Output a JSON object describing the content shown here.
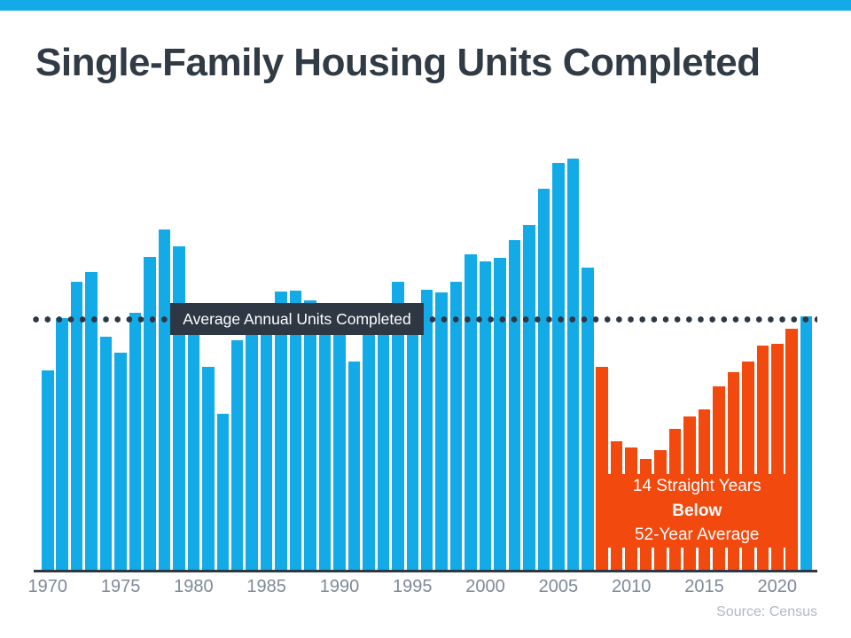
{
  "header": {
    "title": "Single-Family Housing Units Completed"
  },
  "annotation_box": {
    "average_label": "Average Annual Units Completed"
  },
  "below_average_annotation": {
    "line1": "14 Straight Years",
    "line2": "Below",
    "line3": "52-Year Average"
  },
  "footer": {
    "source": "Source: Census"
  },
  "colors": {
    "accent_blue": "#12abe8",
    "bar_blue": "#12abe8",
    "bar_orange": "#f1490e",
    "dark_slate": "#2d3844",
    "title_text": "#313b46",
    "axis_label": "#7d8a99",
    "source_text": "#afb9c4",
    "white": "#ffffff"
  },
  "chart_data": {
    "type": "bar",
    "title": "Single-Family Housing Units Completed",
    "xlabel": "",
    "ylabel": "",
    "unit": "thousands of single-family housing units completed per year (estimated from bar heights)",
    "x": [
      1970,
      1971,
      1972,
      1973,
      1974,
      1975,
      1976,
      1977,
      1978,
      1979,
      1980,
      1981,
      1982,
      1983,
      1984,
      1985,
      1986,
      1987,
      1988,
      1989,
      1990,
      1991,
      1992,
      1993,
      1994,
      1995,
      1996,
      1997,
      1998,
      1999,
      2000,
      2001,
      2002,
      2003,
      2004,
      2005,
      2006,
      2007,
      2008,
      2009,
      2010,
      2011,
      2012,
      2013,
      2014,
      2015,
      2016,
      2017,
      2018,
      2019,
      2020,
      2021,
      2022
    ],
    "values": [
      802,
      1014,
      1160,
      1197,
      940,
      875,
      1034,
      1258,
      1369,
      1301,
      957,
      819,
      631,
      924,
      1025,
      1072,
      1120,
      1123,
      1085,
      1026,
      966,
      838,
      964,
      1039,
      1160,
      1066,
      1129,
      1116,
      1160,
      1270,
      1242,
      1256,
      1325,
      1386,
      1532,
      1636,
      1654,
      1218,
      819,
      520,
      496,
      447,
      483,
      569,
      620,
      648,
      738,
      795,
      840,
      903,
      912,
      971,
      1019
    ],
    "x_tick_labels": [
      "1970",
      "1975",
      "1980",
      "1985",
      "1990",
      "1995",
      "2000",
      "2005",
      "2010",
      "2015",
      "2020"
    ],
    "average_line": {
      "label": "Average Annual Units Completed",
      "value": 1010,
      "style": "dotted"
    },
    "below_average_years": {
      "from": 2008,
      "to": 2021
    },
    "legend": "none",
    "grid": false,
    "y_axis_shown": false
  }
}
